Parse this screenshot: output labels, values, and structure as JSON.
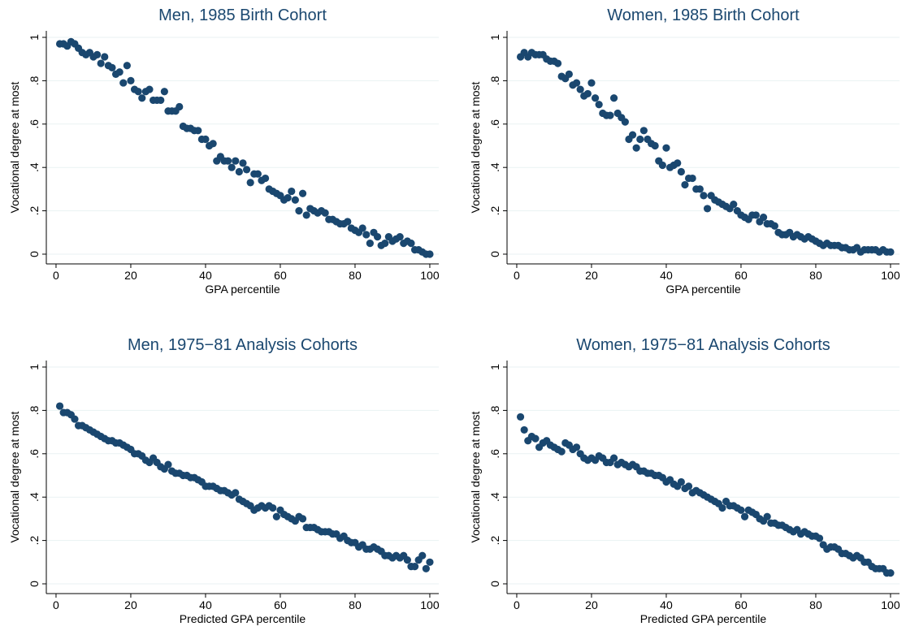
{
  "chart_data": [
    {
      "type": "scatter",
      "title": "Men, 1985 Birth Cohort",
      "x_label": "GPA percentile",
      "y_label": "Vocational degree at most",
      "color": "#1a476f",
      "grid": true,
      "xlim": [
        -2.6,
        102.4
      ],
      "ylim": [
        -0.045,
        1.03
      ],
      "xticks": [
        0,
        20,
        40,
        60,
        80,
        100
      ],
      "yticks": [
        0,
        {
          "value": 0.2,
          "label": ".2"
        },
        {
          "value": 0.4,
          "label": ".4"
        },
        {
          "value": 0.6,
          "label": ".6"
        },
        {
          "value": 0.8,
          "label": ".8"
        },
        1
      ],
      "x": [
        1,
        2,
        3,
        4,
        5,
        6,
        7,
        8,
        9,
        10,
        11,
        12,
        13,
        14,
        15,
        16,
        17,
        18,
        19,
        20,
        21,
        22,
        23,
        24,
        25,
        26,
        27,
        28,
        29,
        30,
        31,
        32,
        33,
        34,
        35,
        36,
        37,
        38,
        39,
        40,
        41,
        42,
        43,
        44,
        45,
        46,
        47,
        48,
        49,
        50,
        51,
        52,
        53,
        54,
        55,
        56,
        57,
        58,
        59,
        60,
        61,
        62,
        63,
        64,
        65,
        66,
        67,
        68,
        69,
        70,
        71,
        72,
        73,
        74,
        75,
        76,
        77,
        78,
        79,
        80,
        81,
        82,
        83,
        84,
        85,
        86,
        87,
        88,
        89,
        90,
        91,
        92,
        93,
        94,
        95,
        96,
        97,
        98,
        99,
        100
      ],
      "values": [
        0.97,
        0.97,
        0.96,
        0.98,
        0.97,
        0.95,
        0.93,
        0.92,
        0.93,
        0.91,
        0.92,
        0.88,
        0.91,
        0.87,
        0.86,
        0.83,
        0.84,
        0.79,
        0.87,
        0.8,
        0.76,
        0.75,
        0.72,
        0.75,
        0.76,
        0.71,
        0.71,
        0.71,
        0.75,
        0.66,
        0.66,
        0.66,
        0.68,
        0.59,
        0.58,
        0.58,
        0.57,
        0.57,
        0.53,
        0.53,
        0.5,
        0.51,
        0.43,
        0.45,
        0.43,
        0.43,
        0.4,
        0.43,
        0.38,
        0.42,
        0.39,
        0.33,
        0.37,
        0.37,
        0.34,
        0.35,
        0.3,
        0.29,
        0.28,
        0.27,
        0.25,
        0.26,
        0.29,
        0.25,
        0.2,
        0.28,
        0.18,
        0.21,
        0.2,
        0.19,
        0.2,
        0.19,
        0.16,
        0.16,
        0.15,
        0.14,
        0.14,
        0.15,
        0.12,
        0.11,
        0.1,
        0.12,
        0.09,
        0.05,
        0.1,
        0.08,
        0.04,
        0.05,
        0.08,
        0.06,
        0.07,
        0.08,
        0.05,
        0.06,
        0.05,
        0.02,
        0.02,
        0.01,
        0.0,
        0.0
      ]
    },
    {
      "type": "scatter",
      "title": "Women, 1985 Birth Cohort",
      "x_label": "GPA percentile",
      "y_label": "Vocational degree at most",
      "color": "#1a476f",
      "grid": true,
      "xlim": [
        -2.6,
        102.4
      ],
      "ylim": [
        -0.045,
        1.03
      ],
      "xticks": [
        0,
        20,
        40,
        60,
        80,
        100
      ],
      "yticks": [
        0,
        {
          "value": 0.2,
          "label": ".2"
        },
        {
          "value": 0.4,
          "label": ".4"
        },
        {
          "value": 0.6,
          "label": ".6"
        },
        {
          "value": 0.8,
          "label": ".8"
        },
        1
      ],
      "x": [
        1,
        2,
        3,
        4,
        5,
        6,
        7,
        8,
        9,
        10,
        11,
        12,
        13,
        14,
        15,
        16,
        17,
        18,
        19,
        20,
        21,
        22,
        23,
        24,
        25,
        26,
        27,
        28,
        29,
        30,
        31,
        32,
        33,
        34,
        35,
        36,
        37,
        38,
        39,
        40,
        41,
        42,
        43,
        44,
        45,
        46,
        47,
        48,
        49,
        50,
        51,
        52,
        53,
        54,
        55,
        56,
        57,
        58,
        59,
        60,
        61,
        62,
        63,
        64,
        65,
        66,
        67,
        68,
        69,
        70,
        71,
        72,
        73,
        74,
        75,
        76,
        77,
        78,
        79,
        80,
        81,
        82,
        83,
        84,
        85,
        86,
        87,
        88,
        89,
        90,
        91,
        92,
        93,
        94,
        95,
        96,
        97,
        98,
        99,
        100
      ],
      "values": [
        0.91,
        0.93,
        0.91,
        0.93,
        0.92,
        0.92,
        0.92,
        0.9,
        0.89,
        0.89,
        0.88,
        0.82,
        0.81,
        0.83,
        0.78,
        0.79,
        0.76,
        0.73,
        0.74,
        0.79,
        0.72,
        0.69,
        0.65,
        0.64,
        0.64,
        0.72,
        0.65,
        0.63,
        0.61,
        0.53,
        0.55,
        0.49,
        0.53,
        0.57,
        0.53,
        0.51,
        0.5,
        0.43,
        0.41,
        0.49,
        0.4,
        0.41,
        0.42,
        0.38,
        0.32,
        0.35,
        0.35,
        0.3,
        0.3,
        0.27,
        0.21,
        0.27,
        0.25,
        0.24,
        0.23,
        0.22,
        0.21,
        0.23,
        0.2,
        0.18,
        0.17,
        0.16,
        0.18,
        0.18,
        0.15,
        0.17,
        0.14,
        0.14,
        0.13,
        0.1,
        0.09,
        0.09,
        0.1,
        0.08,
        0.09,
        0.08,
        0.07,
        0.08,
        0.07,
        0.06,
        0.05,
        0.04,
        0.05,
        0.04,
        0.04,
        0.04,
        0.03,
        0.03,
        0.02,
        0.02,
        0.03,
        0.01,
        0.02,
        0.02,
        0.02,
        0.02,
        0.01,
        0.02,
        0.01,
        0.01
      ]
    },
    {
      "type": "scatter",
      "title": "Men, 1975−81 Analysis Cohorts",
      "x_label": "Predicted GPA percentile",
      "y_label": "Vocational degree at most",
      "color": "#1a476f",
      "grid": true,
      "xlim": [
        -2.6,
        102.4
      ],
      "ylim": [
        -0.045,
        1.03
      ],
      "xticks": [
        0,
        20,
        40,
        60,
        80,
        100
      ],
      "yticks": [
        0,
        {
          "value": 0.2,
          "label": ".2"
        },
        {
          "value": 0.4,
          "label": ".4"
        },
        {
          "value": 0.6,
          "label": ".6"
        },
        {
          "value": 0.8,
          "label": ".8"
        },
        1
      ],
      "x": [
        1,
        2,
        3,
        4,
        5,
        6,
        7,
        8,
        9,
        10,
        11,
        12,
        13,
        14,
        15,
        16,
        17,
        18,
        19,
        20,
        21,
        22,
        23,
        24,
        25,
        26,
        27,
        28,
        29,
        30,
        31,
        32,
        33,
        34,
        35,
        36,
        37,
        38,
        39,
        40,
        41,
        42,
        43,
        44,
        45,
        46,
        47,
        48,
        49,
        50,
        51,
        52,
        53,
        54,
        55,
        56,
        57,
        58,
        59,
        60,
        61,
        62,
        63,
        64,
        65,
        66,
        67,
        68,
        69,
        70,
        71,
        72,
        73,
        74,
        75,
        76,
        77,
        78,
        79,
        80,
        81,
        82,
        83,
        84,
        85,
        86,
        87,
        88,
        89,
        90,
        91,
        92,
        93,
        94,
        95,
        96,
        97,
        98,
        99,
        100
      ],
      "values": [
        0.82,
        0.79,
        0.79,
        0.78,
        0.76,
        0.73,
        0.73,
        0.72,
        0.71,
        0.7,
        0.69,
        0.68,
        0.67,
        0.66,
        0.66,
        0.65,
        0.65,
        0.64,
        0.63,
        0.62,
        0.6,
        0.6,
        0.59,
        0.57,
        0.56,
        0.58,
        0.56,
        0.54,
        0.53,
        0.55,
        0.52,
        0.51,
        0.51,
        0.5,
        0.5,
        0.49,
        0.49,
        0.48,
        0.47,
        0.45,
        0.45,
        0.45,
        0.44,
        0.43,
        0.43,
        0.42,
        0.41,
        0.42,
        0.39,
        0.38,
        0.37,
        0.36,
        0.34,
        0.35,
        0.36,
        0.35,
        0.36,
        0.35,
        0.31,
        0.34,
        0.32,
        0.31,
        0.3,
        0.29,
        0.31,
        0.3,
        0.26,
        0.26,
        0.26,
        0.25,
        0.24,
        0.24,
        0.24,
        0.23,
        0.23,
        0.21,
        0.22,
        0.2,
        0.19,
        0.19,
        0.17,
        0.18,
        0.16,
        0.16,
        0.17,
        0.16,
        0.15,
        0.13,
        0.13,
        0.12,
        0.13,
        0.12,
        0.13,
        0.11,
        0.08,
        0.08,
        0.11,
        0.13,
        0.07,
        0.1
      ]
    },
    {
      "type": "scatter",
      "title": "Women, 1975−81 Analysis Cohorts",
      "x_label": "Predicted GPA percentile",
      "y_label": "Vocational degree at most",
      "color": "#1a476f",
      "grid": true,
      "xlim": [
        -2.6,
        102.4
      ],
      "ylim": [
        -0.045,
        1.03
      ],
      "xticks": [
        0,
        20,
        40,
        60,
        80,
        100
      ],
      "yticks": [
        0,
        {
          "value": 0.2,
          "label": ".2"
        },
        {
          "value": 0.4,
          "label": ".4"
        },
        {
          "value": 0.6,
          "label": ".6"
        },
        {
          "value": 0.8,
          "label": ".8"
        },
        1
      ],
      "x": [
        1,
        2,
        3,
        4,
        5,
        6,
        7,
        8,
        9,
        10,
        11,
        12,
        13,
        14,
        15,
        16,
        17,
        18,
        19,
        20,
        21,
        22,
        23,
        24,
        25,
        26,
        27,
        28,
        29,
        30,
        31,
        32,
        33,
        34,
        35,
        36,
        37,
        38,
        39,
        40,
        41,
        42,
        43,
        44,
        45,
        46,
        47,
        48,
        49,
        50,
        51,
        52,
        53,
        54,
        55,
        56,
        57,
        58,
        59,
        60,
        61,
        62,
        63,
        64,
        65,
        66,
        67,
        68,
        69,
        70,
        71,
        72,
        73,
        74,
        75,
        76,
        77,
        78,
        79,
        80,
        81,
        82,
        83,
        84,
        85,
        86,
        87,
        88,
        89,
        90,
        91,
        92,
        93,
        94,
        95,
        96,
        97,
        98,
        99,
        100
      ],
      "values": [
        0.77,
        0.71,
        0.66,
        0.68,
        0.67,
        0.63,
        0.65,
        0.66,
        0.64,
        0.63,
        0.62,
        0.61,
        0.65,
        0.64,
        0.62,
        0.63,
        0.6,
        0.58,
        0.57,
        0.58,
        0.57,
        0.59,
        0.58,
        0.56,
        0.56,
        0.58,
        0.55,
        0.56,
        0.55,
        0.54,
        0.55,
        0.54,
        0.52,
        0.52,
        0.51,
        0.51,
        0.5,
        0.5,
        0.49,
        0.47,
        0.48,
        0.46,
        0.45,
        0.47,
        0.44,
        0.45,
        0.42,
        0.43,
        0.42,
        0.41,
        0.4,
        0.39,
        0.38,
        0.37,
        0.35,
        0.38,
        0.36,
        0.36,
        0.35,
        0.34,
        0.31,
        0.34,
        0.33,
        0.32,
        0.3,
        0.29,
        0.31,
        0.28,
        0.28,
        0.27,
        0.27,
        0.26,
        0.25,
        0.24,
        0.25,
        0.23,
        0.24,
        0.23,
        0.22,
        0.22,
        0.21,
        0.18,
        0.16,
        0.17,
        0.17,
        0.16,
        0.14,
        0.14,
        0.13,
        0.12,
        0.13,
        0.12,
        0.1,
        0.1,
        0.08,
        0.07,
        0.07,
        0.07,
        0.05,
        0.05
      ]
    }
  ]
}
